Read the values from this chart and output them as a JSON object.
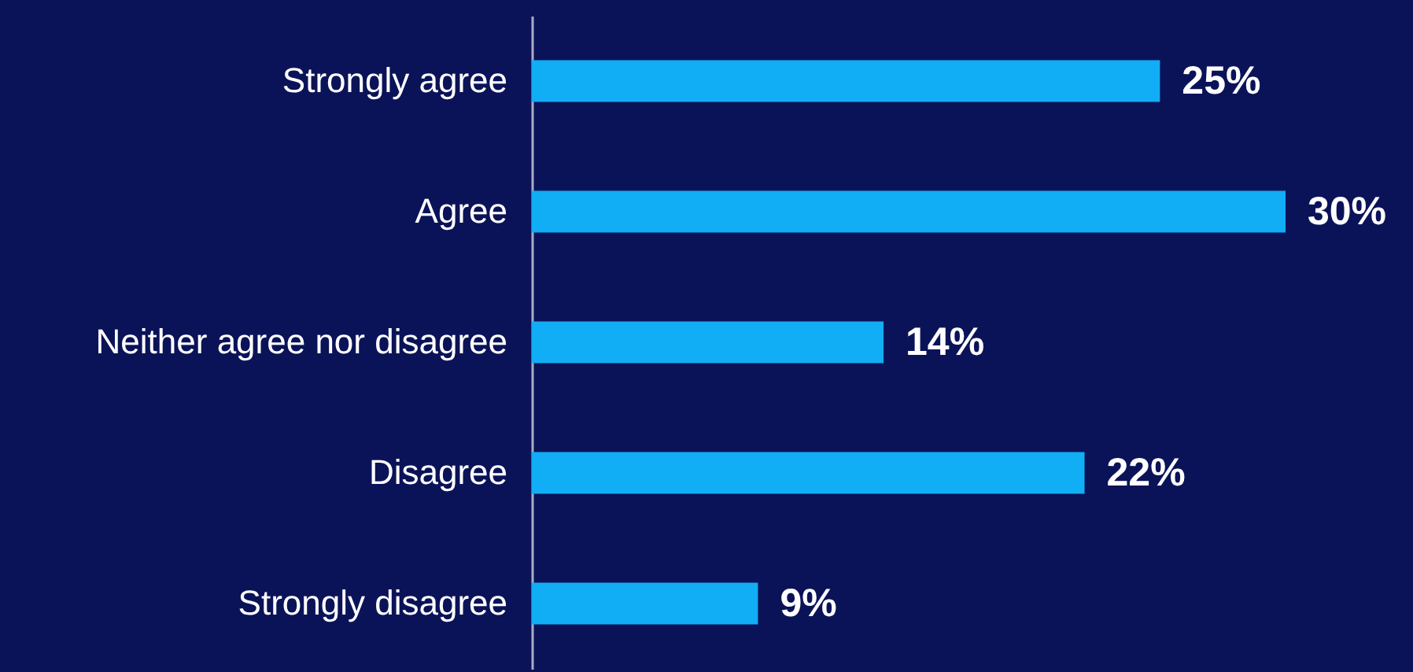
{
  "chart_data": {
    "type": "bar",
    "orientation": "horizontal",
    "categories": [
      "Strongly agree",
      "Agree",
      "Neither agree nor disagree",
      "Disagree",
      "Strongly disagree"
    ],
    "values": [
      25,
      30,
      14,
      22,
      9
    ],
    "value_labels": [
      "25%",
      "30%",
      "14%",
      "22%",
      "9%"
    ],
    "color": "#12aef5"
  }
}
